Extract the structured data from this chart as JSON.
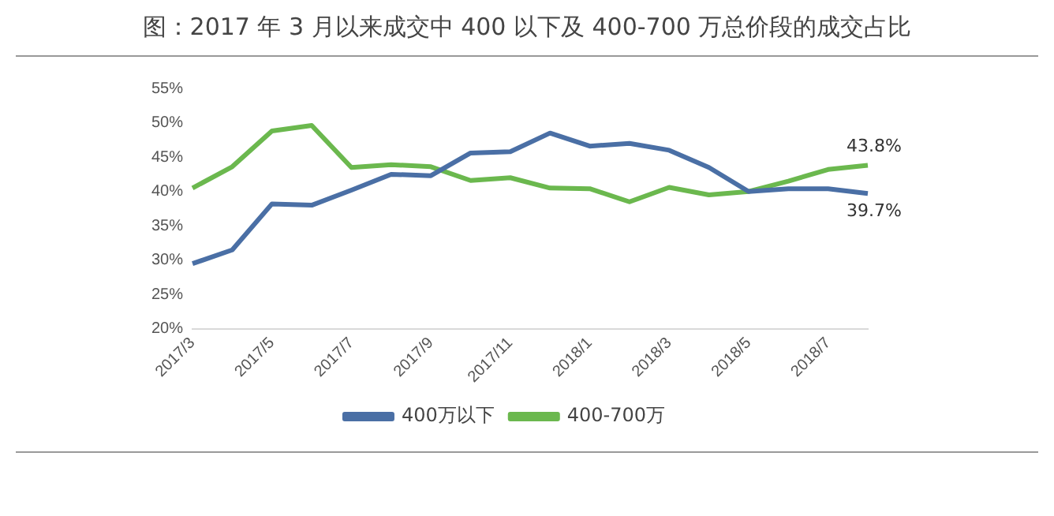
{
  "chart_data": {
    "type": "line",
    "title": "图：2017 年 3 月以来成交中 400 以下及 400-700 万总价段的成交占比",
    "categories": [
      "2017/3",
      null,
      "2017/5",
      null,
      "2017/7",
      null,
      "2017/9",
      null,
      "2017/11",
      null,
      "2018/1",
      null,
      "2018/3",
      null,
      "2018/5",
      null,
      "2018/7",
      null
    ],
    "series": [
      {
        "name": "400万以下",
        "color": "#4a6fa5",
        "values": [
          29.5,
          31.5,
          38.2,
          38,
          40.2,
          42.5,
          42.3,
          45.6,
          45.8,
          48.5,
          46.6,
          47,
          46,
          43.5,
          40,
          40.4,
          40.4,
          39.7
        ],
        "value_labels": [
          null,
          null,
          null,
          null,
          null,
          null,
          null,
          null,
          null,
          null,
          null,
          null,
          null,
          null,
          null,
          null,
          null,
          "39.7%"
        ]
      },
      {
        "name": "400-700万",
        "color": "#6bb84e",
        "values": [
          40.5,
          43.6,
          48.8,
          49.6,
          43.5,
          43.9,
          43.6,
          41.6,
          42,
          40.5,
          40.4,
          38.5,
          40.6,
          39.5,
          40,
          41.5,
          43.2,
          43.8
        ],
        "value_labels": [
          null,
          null,
          null,
          null,
          null,
          null,
          null,
          null,
          null,
          null,
          null,
          null,
          null,
          null,
          null,
          null,
          null,
          "43.8%"
        ]
      }
    ],
    "ylim": [
      20,
      55
    ],
    "yticks": [
      {
        "value": 20,
        "label": "20%"
      },
      {
        "value": 25,
        "label": "25%"
      },
      {
        "value": 30,
        "label": "30%"
      },
      {
        "value": 35,
        "label": "35%"
      },
      {
        "value": 40,
        "label": "40%"
      },
      {
        "value": 45,
        "label": "45%"
      },
      {
        "value": 50,
        "label": "50%"
      },
      {
        "value": 55,
        "label": "55%"
      }
    ],
    "grid": false,
    "legend": "bottom",
    "marker": "none",
    "line_style": "solid"
  }
}
